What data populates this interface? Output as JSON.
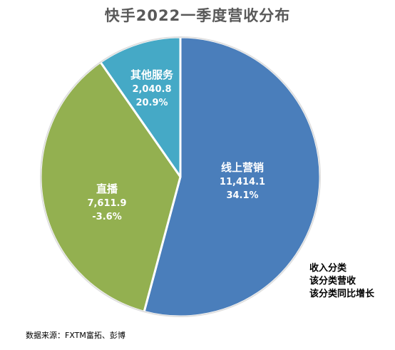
{
  "title": "快手2022一季度营收分布",
  "source": "数据来源：FXTM富拓、彭博",
  "legend": {
    "line1": "收入分类",
    "line2": "该分类营收",
    "line3": "该分类同比增长"
  },
  "chart_data": {
    "type": "pie",
    "title": "快手2022一季度营收分布",
    "slices": [
      {
        "name": "线上营销",
        "revenue": "11,414.1",
        "growth": "34.1%",
        "value": 11414.1,
        "color": "#4a7ebb"
      },
      {
        "name": "直播",
        "revenue": "7,611.9",
        "growth": "-3.6%",
        "value": 7611.9,
        "color": "#93b050"
      },
      {
        "name": "其他服务",
        "revenue": "2,040.8",
        "growth": "20.9%",
        "value": 2040.8,
        "color": "#45a9c6"
      }
    ]
  }
}
